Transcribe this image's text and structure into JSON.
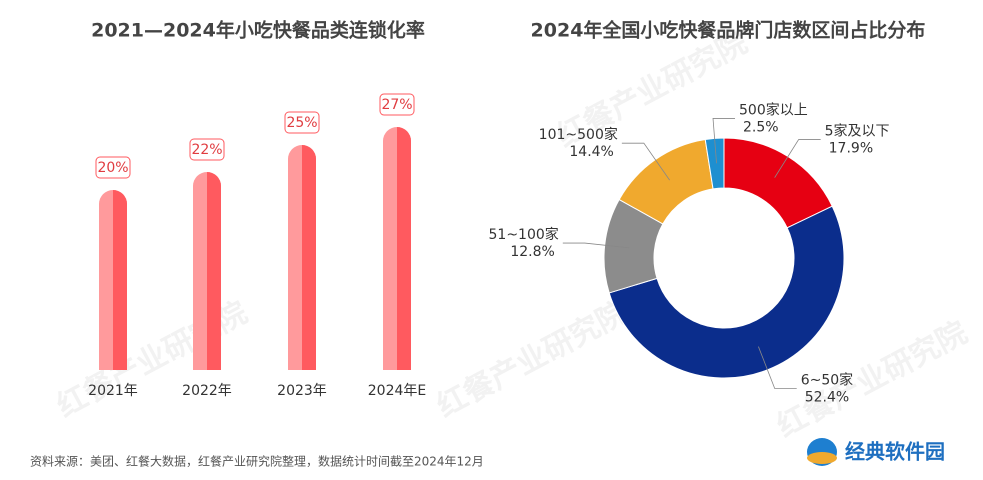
{
  "chart_data": [
    {
      "type": "bar",
      "title": "2021—2024年小吃快餐品类连锁化率",
      "categories": [
        "2021年",
        "2022年",
        "2023年",
        "2024年E"
      ],
      "values": [
        20,
        22,
        25,
        27
      ],
      "value_labels": [
        "20%",
        "22%",
        "25%",
        "27%"
      ],
      "color": "#ff5a5f",
      "ylim": [
        0,
        40
      ]
    },
    {
      "type": "pie",
      "title": "2024年全国小吃快餐品牌门店数区间占比分布",
      "categories": [
        "5家及以下",
        "6~50家",
        "51~100家",
        "101~500家",
        "500家以上"
      ],
      "values": [
        17.9,
        52.4,
        12.8,
        14.4,
        2.5
      ],
      "value_labels": [
        "17.9%",
        "52.4%",
        "12.8%",
        "14.4%",
        "2.5%"
      ],
      "colors": [
        "#e60012",
        "#0b2d8c",
        "#8c8c8c",
        "#f0a92e",
        "#1e8fd0"
      ]
    }
  ],
  "source": "资料来源：美团、红餐大数据，红餐产业研究院整理，数据统计时间截至2024年12月",
  "watermark": "红餐产业研究院",
  "logo": "经典软件园"
}
